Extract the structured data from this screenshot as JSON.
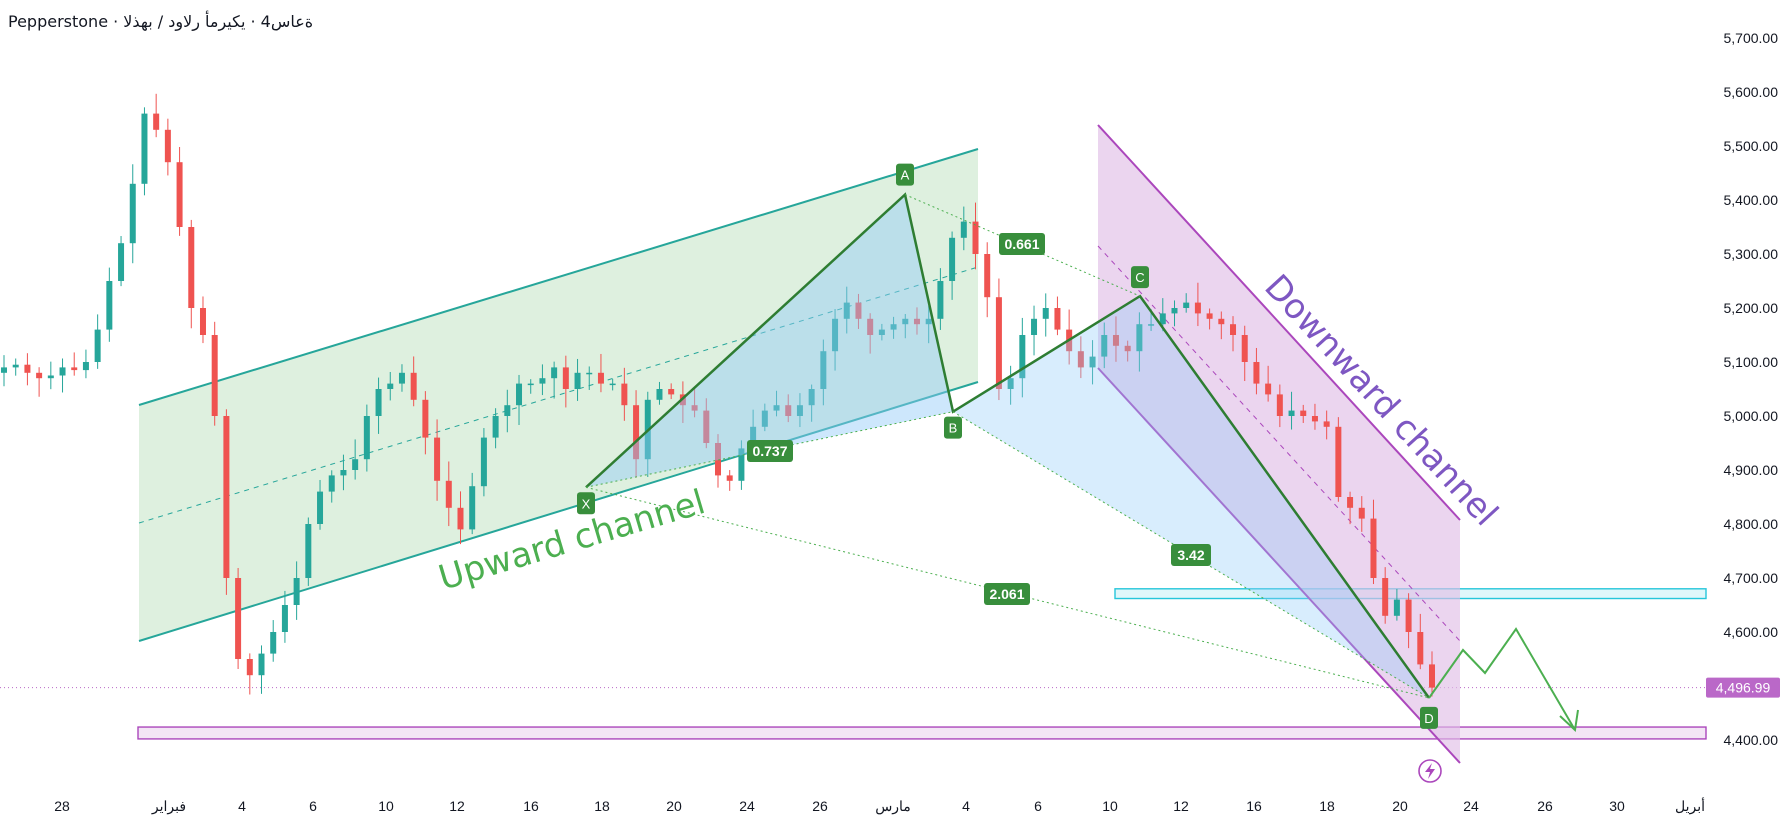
{
  "header": {
    "title": "Pepperstone · ةعاس4 · يكيرمأ رلاود / بهذلا"
  },
  "colors": {
    "up": "#26a69a",
    "down": "#ef5350",
    "harmonic_line": "#2e7d32",
    "label_bg": "#388e3c",
    "up_channel_fill": "#c8e6c9",
    "up_channel_line": "#26a69a",
    "down_channel_fill": "#e1bee7",
    "down_channel_line": "#ab47bc",
    "projection": "#4caf50",
    "last_price": "#ba68c8"
  },
  "price_axis": {
    "ticks": [
      "5,700.00",
      "5,600.00",
      "5,500.00",
      "5,400.00",
      "5,300.00",
      "5,200.00",
      "5,100.00",
      "5,000.00",
      "4,900.00",
      "4,800.00",
      "4,700.00",
      "4,600.00",
      "4,500.00",
      "4,400.00"
    ]
  },
  "date_axis": {
    "ticks": [
      "28",
      "فبراير",
      "4",
      "6",
      "10",
      "12",
      "16",
      "18",
      "20",
      "24",
      "26",
      "مارس",
      "4",
      "6",
      "10",
      "12",
      "16",
      "18",
      "20",
      "24",
      "26",
      "30",
      "أبريل"
    ]
  },
  "last_price": "4,496.99",
  "drawings": {
    "upward_channel_label": "Upward channel",
    "downward_channel_label": "Downward channel",
    "points": [
      "X",
      "A",
      "B",
      "C",
      "D"
    ],
    "ratios": {
      "xab": "0.737",
      "abc": "0.661",
      "bcd": "3.42",
      "xad": "2.061"
    }
  },
  "chart_data": {
    "type": "candlestick",
    "symbol_title": "Pepperstone · ةعاس4 · يكيرمأ رلاود / بهذلا",
    "ylim": [
      4350,
      5740
    ],
    "last_price": 4496.99,
    "pattern_points": {
      "X": 4868,
      "A": 5410,
      "B": 5008,
      "C": 5222,
      "D": 4478
    },
    "fib_ratios": [
      0.737,
      0.661,
      3.42,
      2.061
    ],
    "support_zones": [
      {
        "low": 4402,
        "high": 4424
      },
      {
        "low": 4662,
        "high": 4680
      }
    ],
    "closes": [
      5090,
      5095,
      5080,
      5070,
      5075,
      5090,
      5085,
      5100,
      5160,
      5250,
      5320,
      5430,
      5560,
      5530,
      5470,
      5350,
      5200,
      5150,
      5000,
      4700,
      4550,
      4520,
      4560,
      4600,
      4650,
      4700,
      4800,
      4860,
      4890,
      4900,
      4920,
      5000,
      5050,
      5060,
      5080,
      5030,
      4960,
      4880,
      4830,
      4790,
      4870,
      4960,
      5000,
      5020,
      5060,
      5060,
      5070,
      5090,
      5050,
      5080,
      5080,
      5060,
      5060,
      5020,
      4920,
      5030,
      5050,
      5040,
      5020,
      5010,
      4950,
      4890,
      4880,
      4940,
      4980,
      5010,
      5020,
      5000,
      5020,
      5050,
      5120,
      5180,
      5210,
      5180,
      5150,
      5160,
      5170,
      5180,
      5170,
      5180,
      5250,
      5330,
      5360,
      5300,
      5220,
      5050,
      5070,
      5150,
      5180,
      5200,
      5160,
      5120,
      5090,
      5110,
      5150,
      5130,
      5120,
      5170,
      5170,
      5190,
      5200,
      5210,
      5190,
      5180,
      5170,
      5150,
      5100,
      5060,
      5040,
      5000,
      5010,
      5000,
      4990,
      4980,
      4850,
      4830,
      4810,
      4700,
      4630,
      4660,
      4600,
      4540,
      4497
    ]
  }
}
